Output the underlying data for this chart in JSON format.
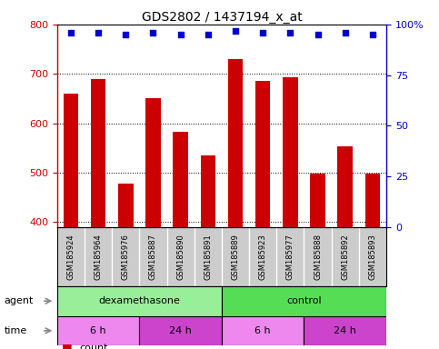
{
  "title": "GDS2802 / 1437194_x_at",
  "samples": [
    "GSM185924",
    "GSM185964",
    "GSM185976",
    "GSM185887",
    "GSM185890",
    "GSM185891",
    "GSM185889",
    "GSM185923",
    "GSM185977",
    "GSM185888",
    "GSM185892",
    "GSM185893"
  ],
  "counts": [
    660,
    690,
    478,
    650,
    583,
    535,
    730,
    685,
    693,
    498,
    553,
    498
  ],
  "percentile_ranks": [
    96,
    96,
    95,
    96,
    95,
    95,
    97,
    96,
    96,
    95,
    96,
    95
  ],
  "bar_color": "#cc0000",
  "dot_color": "#0000cc",
  "ylim_left": [
    390,
    800
  ],
  "ylim_right": [
    0,
    100
  ],
  "yticks_left": [
    400,
    500,
    600,
    700,
    800
  ],
  "yticks_right": [
    0,
    25,
    50,
    75,
    100
  ],
  "agent_labels": [
    {
      "label": "dexamethasone",
      "start": 0,
      "end": 6,
      "color": "#99ee99"
    },
    {
      "label": "control",
      "start": 6,
      "end": 12,
      "color": "#55dd55"
    }
  ],
  "time_labels": [
    {
      "label": "6 h",
      "start": 0,
      "end": 3,
      "color": "#ee88ee"
    },
    {
      "label": "24 h",
      "start": 3,
      "end": 6,
      "color": "#cc44cc"
    },
    {
      "label": "6 h",
      "start": 6,
      "end": 9,
      "color": "#ee88ee"
    },
    {
      "label": "24 h",
      "start": 9,
      "end": 12,
      "color": "#cc44cc"
    }
  ],
  "legend_count_color": "#cc0000",
  "legend_dot_color": "#0000cc",
  "left_axis_color": "#cc0000",
  "right_axis_color": "#0000cc",
  "sample_bg_color": "#cccccc",
  "bar_base": 390
}
